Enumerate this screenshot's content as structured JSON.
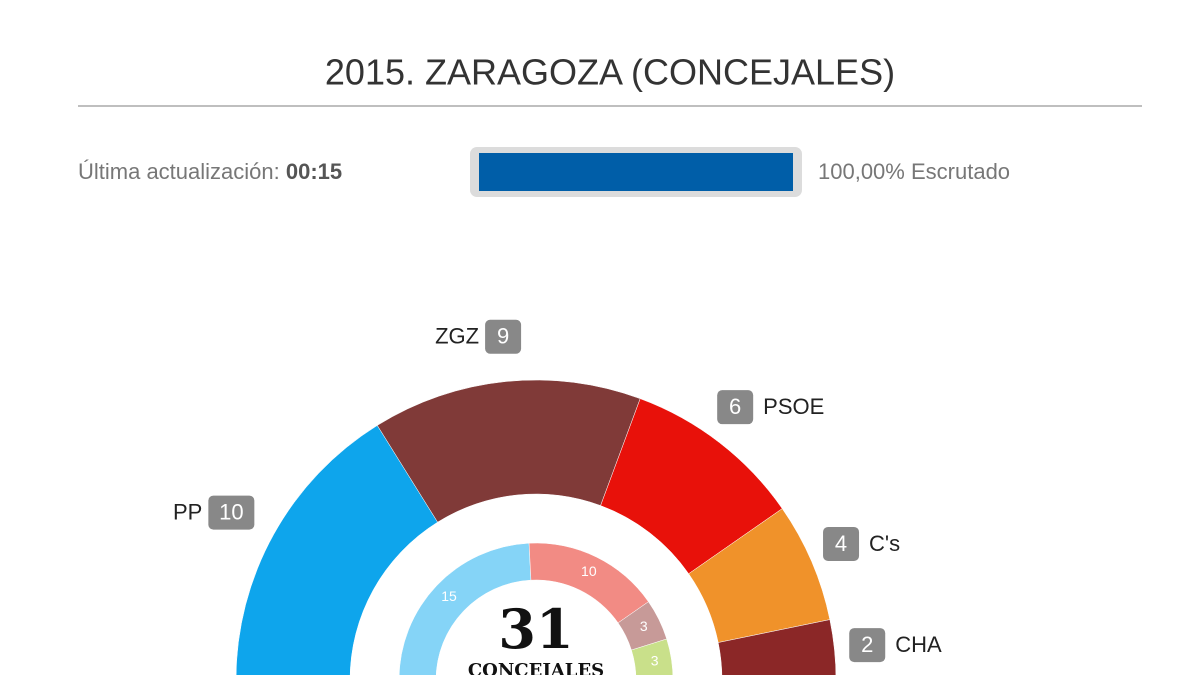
{
  "chart_data": {
    "type": "hemicycle",
    "title": "2015. ZARAGOZA (CONCEJALES)",
    "update_label": "Última actualización:",
    "update_time": "00:15",
    "progress": 100,
    "progress_value_label": "100,00%",
    "progress_text": "Escrutado",
    "progress_color": "#005ea8",
    "categories": [
      "PP",
      "ZGZ",
      "PSOE",
      "C's",
      "CHA"
    ],
    "values": [
      10,
      9,
      6,
      4,
      2
    ],
    "colors": [
      "#0ea5ec",
      "#803a38",
      "#e8110a",
      "#f0922a",
      "#8b2727"
    ],
    "inner_values": [
      15,
      10,
      3,
      3
    ],
    "inner_colors": [
      "#85d4f7",
      "#f28b84",
      "#c79a98",
      "#c9e08a"
    ],
    "total": 31,
    "total_label": "CONCEJALES"
  }
}
